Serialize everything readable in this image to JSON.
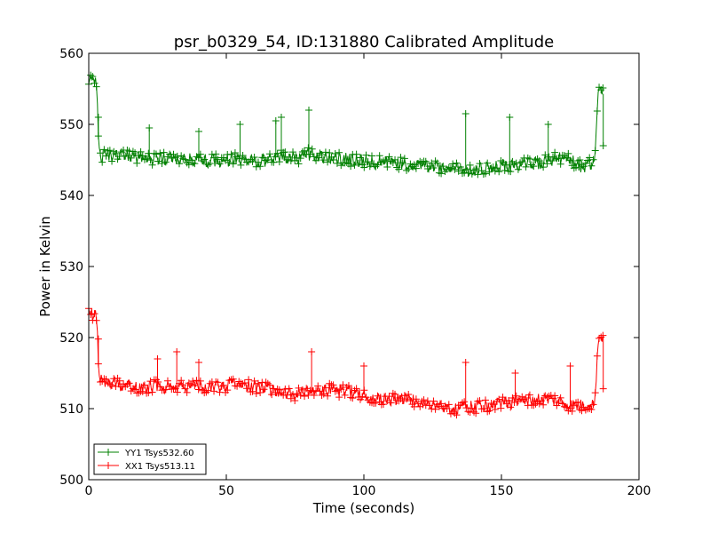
{
  "chart_data": {
    "type": "line",
    "title": "psr_b0329_54, ID:131880 Calibrated Amplitude",
    "xlabel": "Time (seconds)",
    "ylabel": "Power in Kelvin",
    "xlim": [
      0,
      200
    ],
    "ylim": [
      500,
      560
    ],
    "xticks": [
      0,
      50,
      100,
      150,
      200
    ],
    "yticks": [
      500,
      510,
      520,
      530,
      540,
      550,
      560
    ],
    "xtick_labels": [
      "0",
      "50",
      "100",
      "150",
      "200"
    ],
    "ytick_labels": [
      "500",
      "510",
      "520",
      "530",
      "540",
      "550",
      "560"
    ],
    "grid": false,
    "legend_position": "lower-left",
    "marker": "+",
    "series": [
      {
        "name": "YY1 Tsys532.60",
        "color": "#008000",
        "x": [
          0,
          1,
          2,
          3,
          3.5,
          4,
          6,
          10,
          15,
          20,
          25,
          30,
          35,
          40,
          45,
          50,
          55,
          60,
          65,
          70,
          75,
          80,
          85,
          90,
          95,
          100,
          105,
          110,
          115,
          120,
          125,
          130,
          135,
          140,
          145,
          150,
          155,
          160,
          165,
          170,
          175,
          180,
          182,
          184,
          185,
          186,
          187
        ],
        "y": [
          555.8,
          556.2,
          555.5,
          556.0,
          548.0,
          545.5,
          545.6,
          545.8,
          545.4,
          545.2,
          545.0,
          545.3,
          545.1,
          545.0,
          544.9,
          545.0,
          545.1,
          544.8,
          545.0,
          545.6,
          545.2,
          545.8,
          545.5,
          545.2,
          545.0,
          544.8,
          544.7,
          544.5,
          544.4,
          544.2,
          544.0,
          543.8,
          543.8,
          543.6,
          543.8,
          544.0,
          544.2,
          544.4,
          544.7,
          545.2,
          545.0,
          543.8,
          544.4,
          544.6,
          554.5,
          554.8,
          554.3
        ],
        "spikes": [
          {
            "x": 3.5,
            "y": 551.0
          },
          {
            "x": 22,
            "y": 549.5
          },
          {
            "x": 40,
            "y": 549.0
          },
          {
            "x": 55,
            "y": 550.0
          },
          {
            "x": 68,
            "y": 550.5
          },
          {
            "x": 70,
            "y": 551.0
          },
          {
            "x": 80,
            "y": 552.0
          },
          {
            "x": 137,
            "y": 551.5
          },
          {
            "x": 153,
            "y": 551.0
          },
          {
            "x": 167,
            "y": 550.0
          },
          {
            "x": 187,
            "y": 547.0
          }
        ]
      },
      {
        "name": "XX1 Tsys513.11",
        "color": "#ff0000",
        "x": [
          0,
          1,
          2,
          3,
          3.5,
          4,
          6,
          10,
          15,
          20,
          25,
          30,
          35,
          40,
          45,
          50,
          55,
          60,
          65,
          70,
          75,
          80,
          85,
          90,
          95,
          100,
          105,
          110,
          115,
          120,
          125,
          130,
          135,
          140,
          145,
          150,
          155,
          160,
          165,
          170,
          175,
          180,
          182,
          184,
          185,
          186,
          187
        ],
        "y": [
          523.2,
          523.6,
          523.0,
          523.4,
          516.0,
          514.0,
          513.8,
          513.5,
          513.2,
          513.0,
          513.2,
          513.0,
          513.1,
          513.3,
          513.0,
          513.2,
          513.4,
          513.0,
          512.8,
          512.5,
          512.0,
          512.5,
          512.8,
          512.6,
          512.3,
          512.0,
          511.5,
          511.2,
          511.3,
          511.0,
          510.5,
          510.2,
          510.0,
          510.2,
          510.5,
          510.8,
          511.0,
          511.2,
          511.4,
          511.2,
          510.5,
          510.4,
          510.8,
          510.6,
          519.5,
          520.0,
          520.3
        ],
        "spikes": [
          {
            "x": 3.5,
            "y": 519.8
          },
          {
            "x": 25,
            "y": 517.0
          },
          {
            "x": 32,
            "y": 518.0
          },
          {
            "x": 40,
            "y": 516.5
          },
          {
            "x": 81,
            "y": 518.0
          },
          {
            "x": 100,
            "y": 516.0
          },
          {
            "x": 137,
            "y": 516.5
          },
          {
            "x": 155,
            "y": 515.0
          },
          {
            "x": 175,
            "y": 516.0
          },
          {
            "x": 187,
            "y": 512.8
          }
        ]
      }
    ]
  }
}
